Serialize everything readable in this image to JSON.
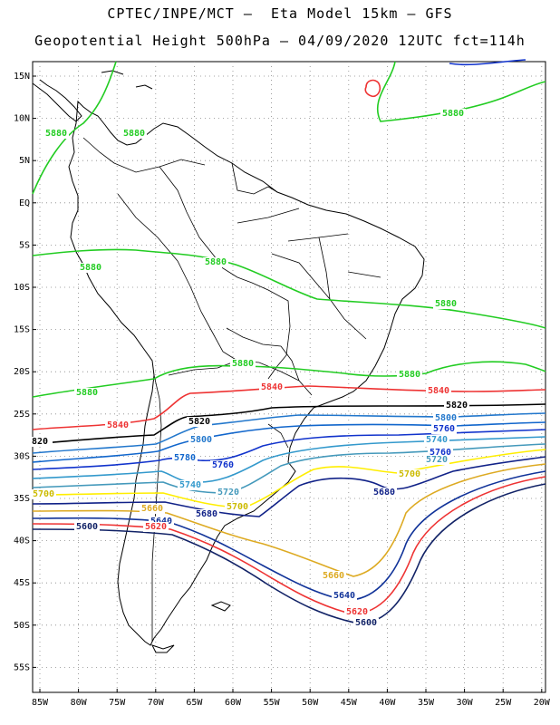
{
  "header": {
    "line1": "CPTEC/INPE/MCT —  Eta Model 15km — GFS",
    "line2": "Geopotential Height 500hPa — 04/09/2020 12UTC fct=114h"
  },
  "axes": {
    "lat_labels": [
      "15N",
      "10N",
      "5N",
      "EQ",
      "5S",
      "10S",
      "15S",
      "20S",
      "25S",
      "30S",
      "35S",
      "40S",
      "45S",
      "50S",
      "55S"
    ],
    "lon_labels": [
      "85W",
      "80W",
      "75W",
      "70W",
      "65W",
      "60W",
      "55W",
      "50W",
      "45W",
      "40W",
      "35W",
      "30W",
      "25W",
      "20W"
    ]
  },
  "colors": {
    "c5880": "#22cc22",
    "c5840": "#ee3333",
    "c5820": "#000000",
    "c5800": "#2277cc",
    "c5760": "#1133cc",
    "c5780": "#1166cc",
    "c5740": "#3399cc",
    "c5720": "#4499bb",
    "c5700": "#ffee00",
    "c5680": "#112288",
    "c5660": "#ddaa22",
    "c5640": "#113399",
    "c5620": "#ee3333",
    "c5600": "#112266"
  },
  "contour_labels": [
    {
      "text": "5880",
      "color": "#22cc22"
    },
    {
      "text": "5880",
      "color": "#22cc22"
    },
    {
      "text": "5880",
      "color": "#22cc22"
    },
    {
      "text": "5880",
      "color": "#22cc22"
    },
    {
      "text": "5880",
      "color": "#22cc22"
    },
    {
      "text": "5880",
      "color": "#22cc22"
    },
    {
      "text": "5880",
      "color": "#22cc22"
    },
    {
      "text": "5880",
      "color": "#22cc22"
    },
    {
      "text": "5880",
      "color": "#22cc22"
    },
    {
      "text": "5840",
      "color": "#ee3333"
    },
    {
      "text": "5840",
      "color": "#ee3333"
    },
    {
      "text": "5840",
      "color": "#ee3333"
    },
    {
      "text": "5820",
      "color": "#000000"
    },
    {
      "text": "5820",
      "color": "#000000"
    },
    {
      "text": "820",
      "color": "#000000"
    },
    {
      "text": "5800",
      "color": "#2277cc"
    },
    {
      "text": "5800",
      "color": "#2277cc"
    },
    {
      "text": "5780",
      "color": "#1166cc"
    },
    {
      "text": "5760",
      "color": "#1133cc"
    },
    {
      "text": "5760",
      "color": "#1133cc"
    },
    {
      "text": "5760",
      "color": "#1133cc"
    },
    {
      "text": "5740",
      "color": "#3399cc"
    },
    {
      "text": "5740",
      "color": "#3399cc"
    },
    {
      "text": "5720",
      "color": "#4499bb"
    },
    {
      "text": "5720",
      "color": "#4499bb"
    },
    {
      "text": "5700",
      "color": "#ccbb00"
    },
    {
      "text": "5700",
      "color": "#ccbb00"
    },
    {
      "text": "5700",
      "color": "#ccbb00"
    },
    {
      "text": "5680",
      "color": "#112288"
    },
    {
      "text": "5680",
      "color": "#112288"
    },
    {
      "text": "5660",
      "color": "#ddaa22"
    },
    {
      "text": "5660",
      "color": "#ddaa22"
    },
    {
      "text": "5640",
      "color": "#113399"
    },
    {
      "text": "5640",
      "color": "#113399"
    },
    {
      "text": "5620",
      "color": "#ee3333"
    },
    {
      "text": "5620",
      "color": "#ee3333"
    },
    {
      "text": "5600",
      "color": "#112266"
    },
    {
      "text": "5600",
      "color": "#112266"
    }
  ]
}
